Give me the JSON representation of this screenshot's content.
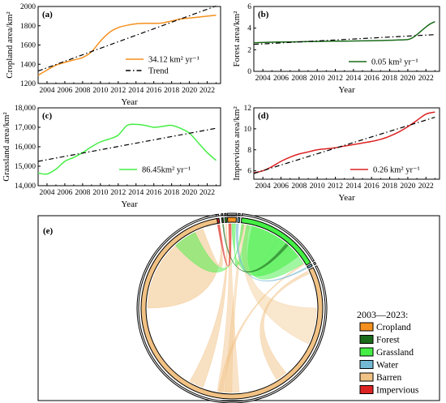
{
  "chart_data": [
    {
      "panel": "(a)",
      "type": "line",
      "xlabel": "Year",
      "ylabel": "Cropland area/km²",
      "xticks": [
        2004,
        2006,
        2008,
        2010,
        2012,
        2014,
        2016,
        2018,
        2020,
        2022
      ],
      "xlim": [
        2003,
        2023.5
      ],
      "yticks": [
        1200,
        1400,
        1600,
        1800,
        2000
      ],
      "ylim": [
        1200,
        2000
      ],
      "series": [
        {
          "name": "34.12 km² yr⁻¹",
          "color": "#f5901e",
          "style": "solid",
          "x": [
            2003,
            2004,
            2005,
            2006,
            2007,
            2008,
            2009,
            2010,
            2011,
            2012,
            2013,
            2014,
            2015,
            2016,
            2017,
            2018,
            2019,
            2020,
            2021,
            2022,
            2023
          ],
          "y": [
            1285,
            1340,
            1390,
            1420,
            1445,
            1470,
            1530,
            1640,
            1730,
            1780,
            1805,
            1820,
            1825,
            1825,
            1830,
            1850,
            1870,
            1880,
            1890,
            1900,
            1910
          ]
        },
        {
          "name": "Trend",
          "color": "#000000",
          "style": "dashdot",
          "x": [
            2003,
            2023
          ],
          "y": [
            1330,
            2005
          ]
        }
      ]
    },
    {
      "panel": "(b)",
      "type": "line",
      "xlabel": "Year",
      "ylabel": "Forest area/km²",
      "xticks": [
        2004,
        2006,
        2008,
        2010,
        2012,
        2014,
        2016,
        2018,
        2020,
        2022
      ],
      "xlim": [
        2003,
        2023.5
      ],
      "yticks": [
        0,
        2,
        4,
        6
      ],
      "ylim": [
        0,
        6
      ],
      "series": [
        {
          "name": "0.05 km² yr⁻¹",
          "color": "#1a6b1a",
          "style": "solid",
          "x": [
            2003,
            2005,
            2007,
            2009,
            2011,
            2013,
            2015,
            2017,
            2019,
            2020,
            2020.5,
            2021,
            2021.5,
            2022,
            2022.5,
            2023
          ],
          "y": [
            2.65,
            2.7,
            2.72,
            2.75,
            2.78,
            2.8,
            2.82,
            2.85,
            2.9,
            2.95,
            3.1,
            3.4,
            3.75,
            4.1,
            4.4,
            4.6
          ]
        },
        {
          "name": "",
          "color": "#000000",
          "style": "dashdot",
          "x": [
            2003,
            2023
          ],
          "y": [
            2.5,
            3.4
          ]
        }
      ]
    },
    {
      "panel": "(c)",
      "type": "line",
      "xlabel": "Year",
      "ylabel": "Grassland area/km²",
      "xticks": [
        2004,
        2006,
        2008,
        2010,
        2012,
        2014,
        2016,
        2018,
        2020,
        2022
      ],
      "xlim": [
        2003,
        2023.5
      ],
      "yticks": [
        14000,
        15000,
        16000,
        17000,
        18000
      ],
      "ylim": [
        14000,
        18000
      ],
      "series": [
        {
          "name": "86.45km² yr⁻¹",
          "color": "#44ee44",
          "style": "solid",
          "x": [
            2003,
            2004,
            2005,
            2006,
            2007,
            2008,
            2009,
            2010,
            2011,
            2012,
            2013,
            2014,
            2015,
            2016,
            2017,
            2018,
            2019,
            2020,
            2021,
            2022,
            2023
          ],
          "y": [
            14650,
            14600,
            14850,
            15250,
            15450,
            15700,
            16000,
            16250,
            16400,
            16600,
            17100,
            17150,
            17100,
            17000,
            17050,
            17100,
            16950,
            16700,
            16200,
            15700,
            15300
          ]
        },
        {
          "name": "",
          "color": "#000000",
          "style": "dashdot",
          "x": [
            2003,
            2023
          ],
          "y": [
            15250,
            16950
          ]
        }
      ]
    },
    {
      "panel": "(d)",
      "type": "line",
      "xlabel": "Year",
      "ylabel": "Impervious area/km²",
      "xticks": [
        2004,
        2006,
        2008,
        2010,
        2012,
        2014,
        2016,
        2018,
        2020,
        2022
      ],
      "xlim": [
        2003,
        2023.5
      ],
      "yticks": [
        6,
        8,
        10,
        12
      ],
      "ylim": [
        5.2,
        12
      ],
      "series": [
        {
          "name": "0.26 km² yr⁻¹",
          "color": "#dd2222",
          "style": "solid",
          "x": [
            2003,
            2004,
            2005,
            2006,
            2007,
            2008,
            2009,
            2010,
            2011,
            2012,
            2013,
            2014,
            2015,
            2016,
            2017,
            2018,
            2019,
            2020,
            2021,
            2022,
            2023
          ],
          "y": [
            5.8,
            6.0,
            6.4,
            6.9,
            7.3,
            7.6,
            7.8,
            8.0,
            8.1,
            8.2,
            8.35,
            8.5,
            8.65,
            8.8,
            9.0,
            9.3,
            9.7,
            10.2,
            10.8,
            11.4,
            11.6
          ]
        },
        {
          "name": "",
          "color": "#000000",
          "style": "dashdot",
          "x": [
            2003,
            2023
          ],
          "y": [
            5.75,
            11.1
          ]
        }
      ]
    },
    {
      "panel": "(e)",
      "type": "chord",
      "legend_title": "2003—2023:",
      "categories": [
        {
          "name": "Cropland",
          "color": "#f5901e"
        },
        {
          "name": "Forest",
          "color": "#1a6b1a"
        },
        {
          "name": "Grassland",
          "color": "#44ee44"
        },
        {
          "name": "Water",
          "color": "#74b9d4"
        },
        {
          "name": "Barren",
          "color": "#f1c285"
        },
        {
          "name": "Impervious",
          "color": "#dd2222"
        }
      ]
    }
  ]
}
